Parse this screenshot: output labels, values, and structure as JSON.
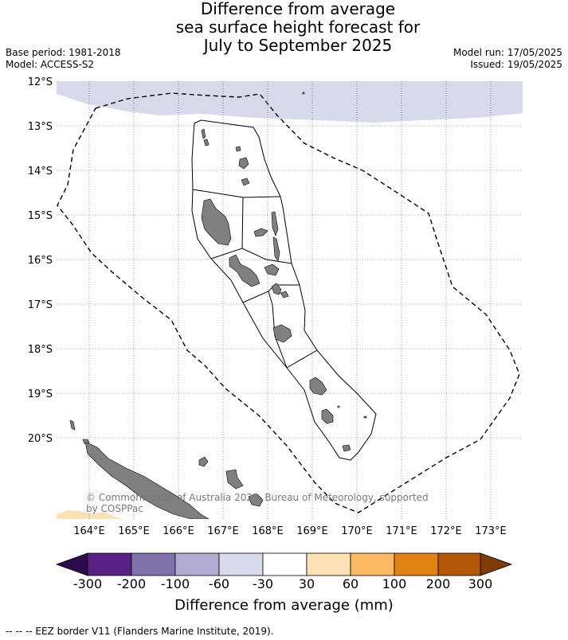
{
  "title": {
    "line1": "Difference from average",
    "line2": "sea surface height forecast for",
    "line3": "July to September 2025"
  },
  "meta_left": {
    "base_period": "Base period: 1981-2018",
    "model": "Model: ACCESS-S2"
  },
  "meta_right": {
    "model_run": "Model run: 17/05/2025",
    "issued": "Issued: 19/05/2025"
  },
  "map": {
    "lat_labels": [
      "12°S",
      "13°S",
      "14°S",
      "15°S",
      "16°S",
      "17°S",
      "18°S",
      "19°S",
      "20°S"
    ],
    "lon_labels": [
      "164°E",
      "165°E",
      "166°E",
      "167°E",
      "168°E",
      "169°E",
      "170°E",
      "171°E",
      "172°E",
      "173°E"
    ],
    "copyright": "© Commonwealth of Australia 2025, Bureau of Meteorology, supported by COSPPac",
    "anomaly_regions": [
      {
        "name": "north band",
        "category": "-60 to -30"
      },
      {
        "name": "southwest corner",
        "category": "30 to 60"
      }
    ]
  },
  "colorbar": {
    "title": "Difference from average (mm)",
    "ticks": [
      "-300",
      "-200",
      "-100",
      "-60",
      "-30",
      "30",
      "60",
      "100",
      "200",
      "300"
    ],
    "colors": [
      "#5a2185",
      "#8073ac",
      "#b2abd2",
      "#d8daeb",
      "#ffffff",
      "#fee0b6",
      "#fdb863",
      "#e08214",
      "#b35806"
    ],
    "under_color": "#2d0a4e",
    "over_color": "#7f3b08"
  },
  "legend": {
    "eez": "--  --  -- EEZ border V11 (Flanders Marine Institute, 2019)."
  }
}
